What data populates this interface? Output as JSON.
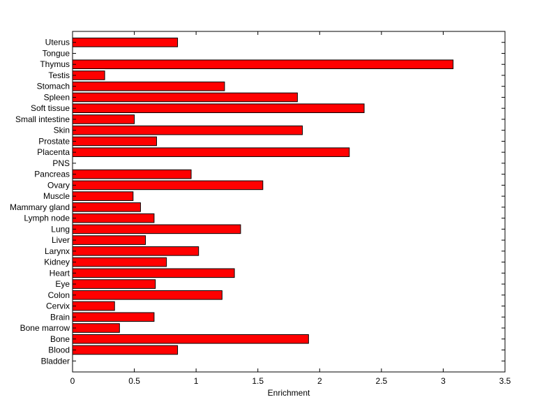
{
  "chart_data": {
    "type": "bar",
    "orientation": "horizontal",
    "title": "",
    "xlabel": "Enrichment",
    "ylabel": "",
    "xlim": [
      0,
      3.5
    ],
    "xticks": [
      "0",
      "0.5",
      "1",
      "1.5",
      "2",
      "2.5",
      "3",
      "3.5"
    ],
    "grid": false,
    "bar_color": "#ff0000",
    "edge_color": "#000000",
    "categories": [
      "Bladder",
      "Blood",
      "Bone",
      "Bone marrow",
      "Brain",
      "Cervix",
      "Colon",
      "Eye",
      "Heart",
      "Kidney",
      "Larynx",
      "Liver",
      "Lung",
      "Lymph node",
      "Mammary gland",
      "Muscle",
      "Ovary",
      "Pancreas",
      "PNS",
      "Placenta",
      "Prostate",
      "Skin",
      "Small intestine",
      "Soft tissue",
      "Spleen",
      "Stomach",
      "Testis",
      "Thymus",
      "Tongue",
      "Uterus"
    ],
    "values": [
      0,
      0.85,
      1.91,
      0.38,
      0.66,
      0.34,
      1.21,
      0.67,
      1.31,
      0.76,
      1.02,
      0.59,
      1.36,
      0.66,
      0.55,
      0.49,
      1.54,
      0.96,
      0,
      2.24,
      0.68,
      1.86,
      0.5,
      2.36,
      1.82,
      1.23,
      0.26,
      3.08,
      0,
      0.85
    ]
  }
}
